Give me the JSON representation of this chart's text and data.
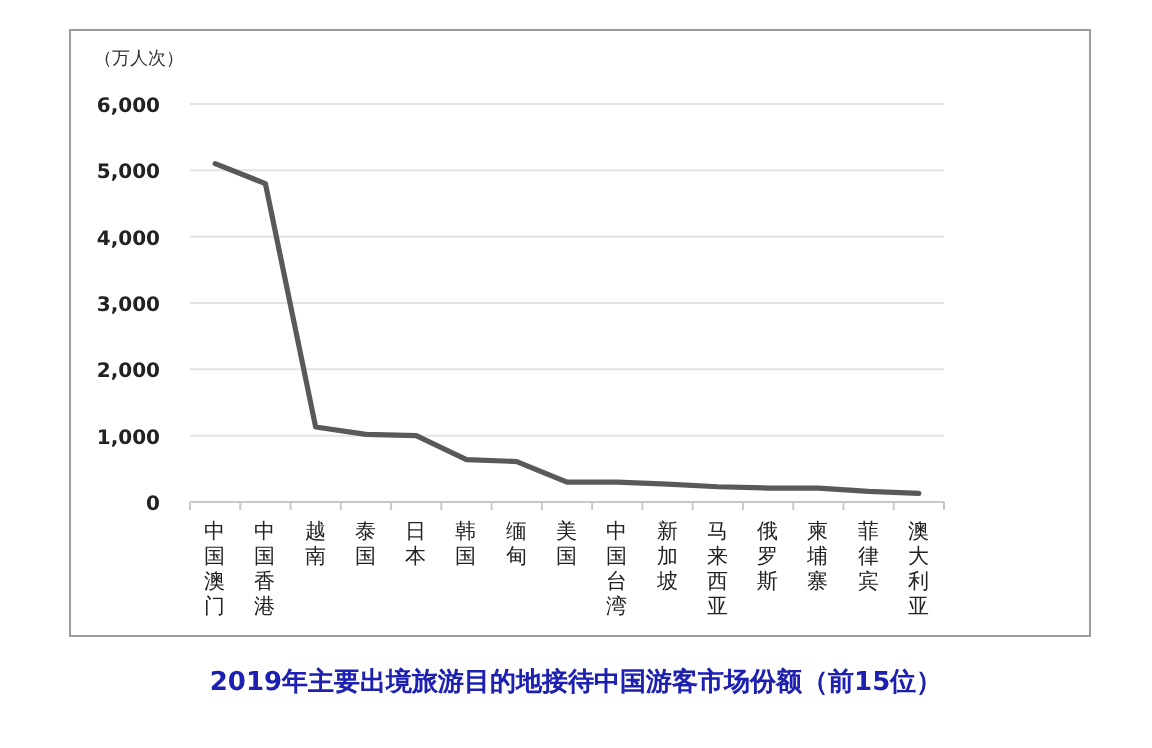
{
  "chart_data": {
    "type": "line",
    "title": "2019年主要出境旅游目的地接待中国游客市场份额（前15位）",
    "ylabel": "（万人次）",
    "categories": [
      "中国澳门",
      "中国香港",
      "越南",
      "泰国",
      "日本",
      "韩国",
      "缅甸",
      "美国",
      "中国台湾",
      "新加坡",
      "马来西亚",
      "俄罗斯",
      "柬埔寨",
      "菲律宾",
      "澳大利亚"
    ],
    "series": [
      {
        "color": "#595959",
        "values": [
          5100,
          4800,
          1130,
          1020,
          1000,
          640,
          610,
          300,
          300,
          270,
          230,
          210,
          210,
          160,
          130
        ]
      }
    ],
    "ylim": [
      0,
      6000
    ],
    "yticks": [
      {
        "value": 0,
        "label": "0"
      },
      {
        "value": 1000,
        "label": "1,000"
      },
      {
        "value": 2000,
        "label": "2,000"
      },
      {
        "value": 3000,
        "label": "3,000"
      },
      {
        "value": 4000,
        "label": "4,000"
      },
      {
        "value": 5000,
        "label": "5,000"
      },
      {
        "value": 6000,
        "label": "6,000"
      }
    ],
    "grid": "y",
    "marker": "none",
    "line_style": "solid"
  }
}
